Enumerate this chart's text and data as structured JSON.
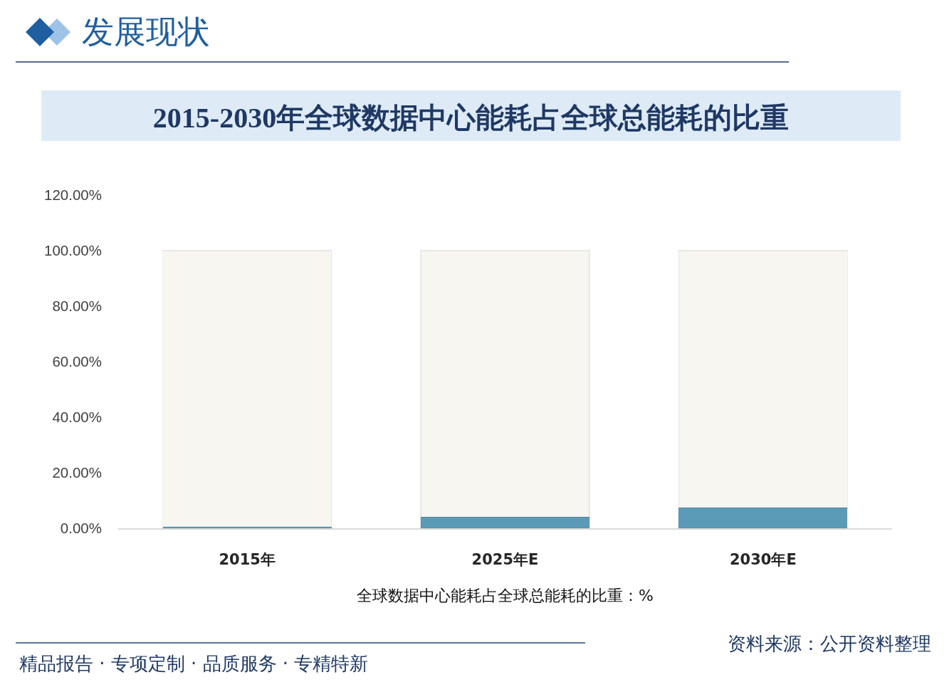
{
  "chart_data": {
    "type": "bar",
    "title": "2015-2030年全球数据中心能耗占全球总能耗的比重",
    "xlabel": "全球数据中心能耗占全球总能耗的比重：%",
    "categories": [
      "2015年",
      "2025年E",
      "2030年E"
    ],
    "series": [
      {
        "color": "#5b9bb7",
        "values": [
          0.6,
          4,
          7.4
        ]
      },
      {
        "color": "#f8f6f1",
        "values": [
          99.4,
          96,
          92.6
        ]
      }
    ],
    "stacked": true,
    "ylim": [
      0,
      120
    ],
    "yticks": [
      {
        "value": 0,
        "label": "0.00%"
      },
      {
        "value": 20,
        "label": "20.00%"
      },
      {
        "value": 40,
        "label": "40.00%"
      },
      {
        "value": 60,
        "label": "60.00%"
      },
      {
        "value": 80,
        "label": "80.00%"
      },
      {
        "value": 100,
        "label": "100.00%"
      },
      {
        "value": 120,
        "label": "120.00%"
      }
    ],
    "grid": false,
    "annotations": [
      "发展现状",
      "精品报告 · 专项定制 · 品质服务 · 专精特新",
      "资料来源：公开资料整理"
    ]
  }
}
